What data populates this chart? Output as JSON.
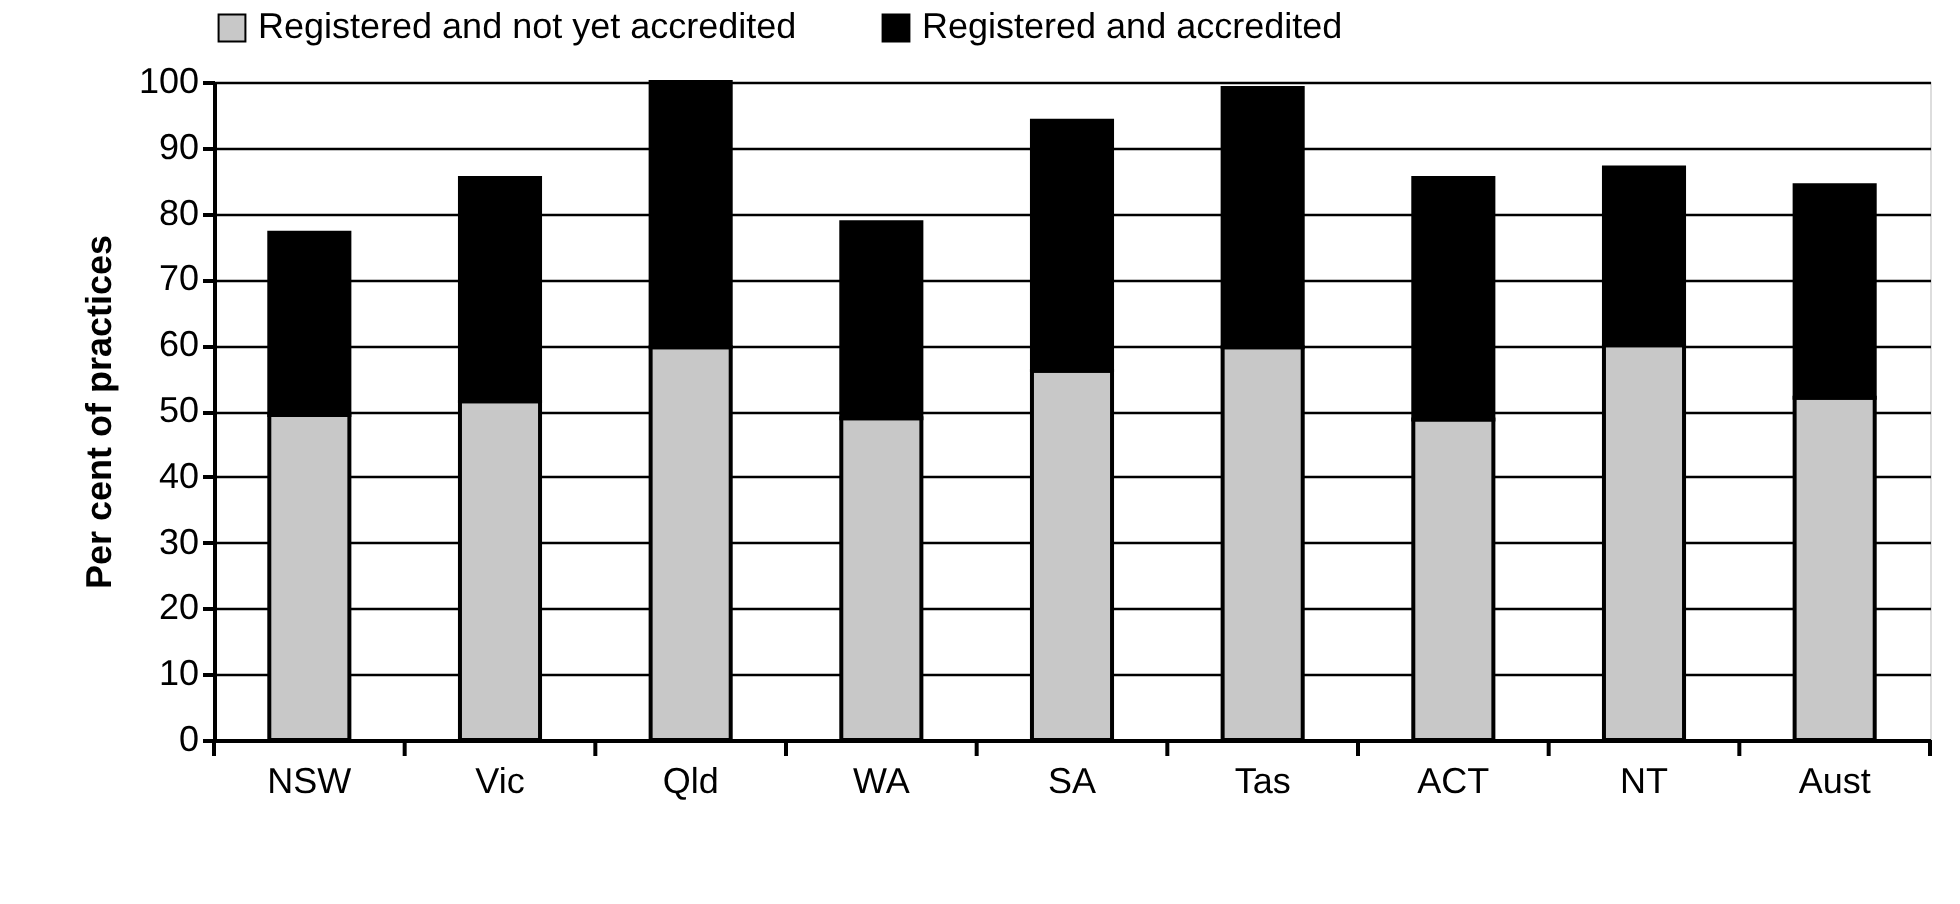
{
  "chart_data": {
    "type": "bar",
    "stacked": true,
    "ylabel": "Per cent of practices",
    "categories": [
      "NSW",
      "Vic",
      "Qld",
      "WA",
      "SA",
      "Tas",
      "ACT",
      "NT",
      "Aust"
    ],
    "series": [
      {
        "name": "Registered and not yet accredited",
        "color": "#c8c8c8",
        "values": [
          49.4,
          51.5,
          59.7,
          48.9,
          56.1,
          59.7,
          48.7,
          60.0,
          52.0
        ]
      },
      {
        "name": "Registered and accredited",
        "color": "#000000",
        "values": [
          27.7,
          33.9,
          40.3,
          29.8,
          38.0,
          39.4,
          36.7,
          27.0,
          32.3
        ]
      }
    ],
    "ylim": [
      0,
      100
    ],
    "yticks": [
      0,
      10,
      20,
      30,
      40,
      50,
      60,
      70,
      80,
      90,
      100
    ],
    "grid": "y",
    "legend": "top"
  }
}
